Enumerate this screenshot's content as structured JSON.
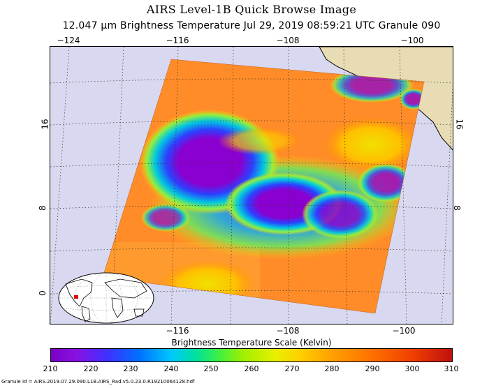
{
  "header": {
    "title": "AIRS Level-1B Quick Browse Image",
    "subtitle": "12.047 µm Brightness Temperature    Jul 29, 2019 08:59:21 UTC   Granule 090"
  },
  "map": {
    "lon_ticks_top": [
      "−124",
      "−116",
      "−108",
      "−100"
    ],
    "lon_ticks_bottom": [
      "−116",
      "−108",
      "−100"
    ],
    "lat_ticks": [
      "16",
      "8",
      "0"
    ],
    "colors": {
      "ocean": "#d8d8f0",
      "land": "#e8dcb4",
      "cold_core": "#8a00d0",
      "warm": "#ff8c28"
    }
  },
  "colorbar": {
    "title": "Brightness Temperature Scale (Kelvin)",
    "labels": [
      "210",
      "220",
      "230",
      "240",
      "250",
      "260",
      "270",
      "280",
      "290",
      "300",
      "310"
    ]
  },
  "footer": {
    "granule_id": "Granule Id = AIRS.2019.07.29.090.L1B.AIRS_Rad.v5.0.23.0.R19210064128.hdf"
  }
}
